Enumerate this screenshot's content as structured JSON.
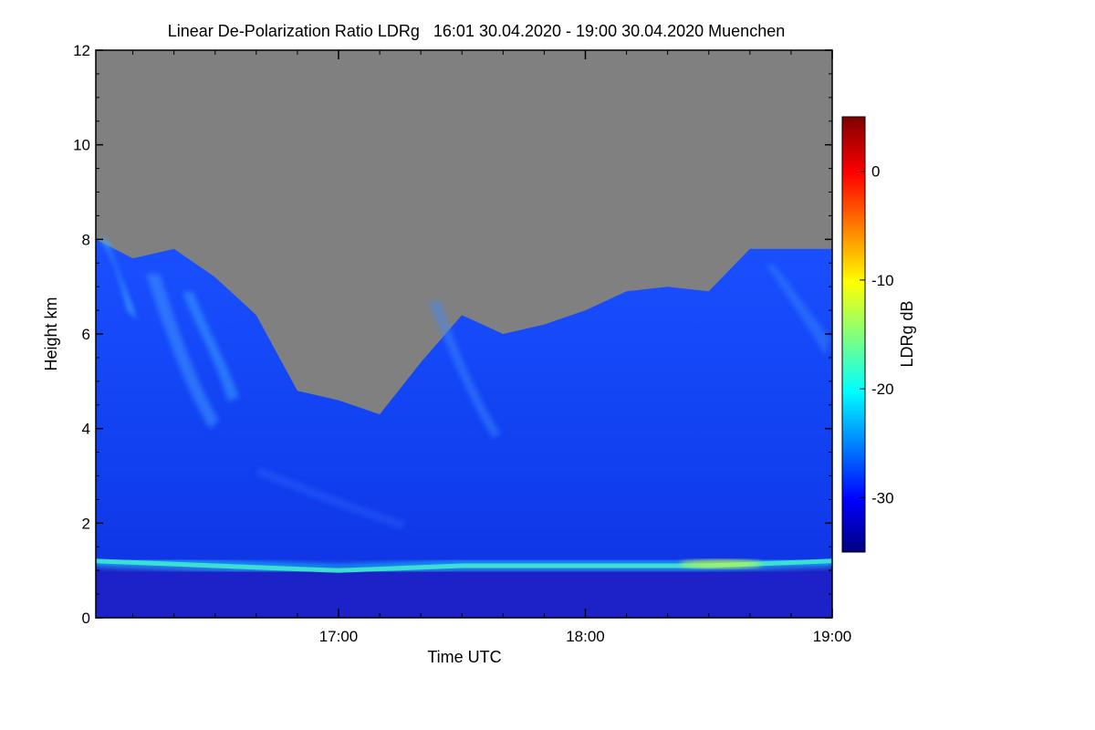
{
  "chart_data": {
    "type": "heatmap",
    "title": "Linear De-Polarization Ratio LDRg   16:01 30.04.2020 - 19:00 30.04.2020 Muenchen",
    "xlabel": "Time UTC",
    "ylabel": "Height km",
    "colorbar_label": "LDRg dB",
    "x_range": [
      "16:01",
      "19:00"
    ],
    "x_ticks": [
      "17:00",
      "18:00",
      "19:00"
    ],
    "ylim": [
      0,
      12
    ],
    "y_ticks": [
      0,
      2,
      4,
      6,
      8,
      10,
      12
    ],
    "colorbar_range": [
      -35,
      5
    ],
    "colorbar_ticks": [
      0,
      -10,
      -20,
      -30
    ],
    "colormap": [
      "#000080",
      "#0000ff",
      "#00ffff",
      "#ffff00",
      "#ff0000",
      "#800000"
    ],
    "no_data_color": "#808080",
    "cloud_top_km": [
      [
        "16:01",
        8.0
      ],
      [
        "16:10",
        7.6
      ],
      [
        "16:20",
        7.8
      ],
      [
        "16:30",
        7.2
      ],
      [
        "16:40",
        6.4
      ],
      [
        "16:50",
        4.8
      ],
      [
        "17:00",
        4.6
      ],
      [
        "17:10",
        4.3
      ],
      [
        "17:20",
        5.4
      ],
      [
        "17:30",
        6.4
      ],
      [
        "17:40",
        6.0
      ],
      [
        "17:50",
        6.2
      ],
      [
        "18:00",
        6.5
      ],
      [
        "18:10",
        6.9
      ],
      [
        "18:20",
        7.0
      ],
      [
        "18:30",
        6.9
      ],
      [
        "18:40",
        7.8
      ],
      [
        "18:50",
        7.8
      ],
      [
        "19:00",
        7.8
      ]
    ],
    "boundary_layer_km": [
      [
        "16:01",
        1.2
      ],
      [
        "16:30",
        1.1
      ],
      [
        "17:00",
        1.0
      ],
      [
        "17:30",
        1.1
      ],
      [
        "18:00",
        1.1
      ],
      [
        "18:30",
        1.1
      ],
      [
        "19:00",
        1.2
      ]
    ]
  }
}
